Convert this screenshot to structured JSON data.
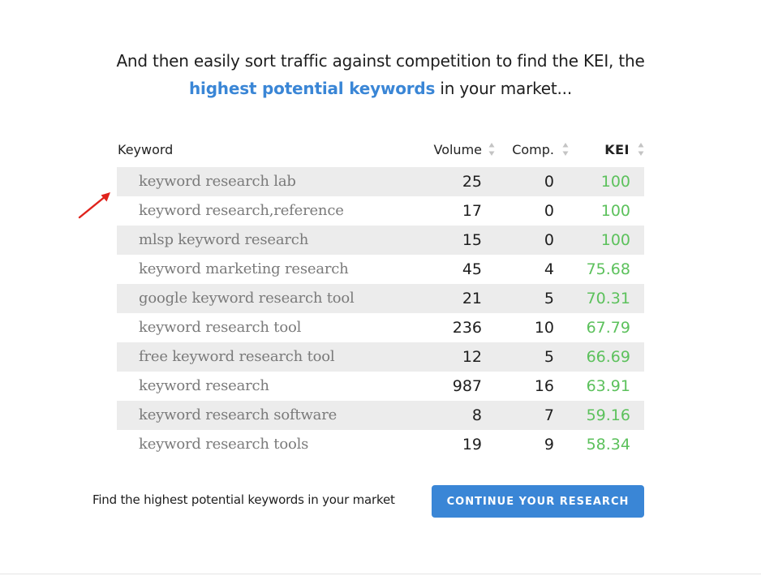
{
  "headline": {
    "line1": "And then easily sort traffic against competition to find the KEI, the",
    "highlight": "highest potential keywords",
    "line2_rest": " in your market..."
  },
  "table": {
    "columns": {
      "keyword": "Keyword",
      "volume": "Volume",
      "comp": "Comp.",
      "kei": "KEI"
    },
    "rows": [
      {
        "keyword": "keyword research lab",
        "volume": "25",
        "comp": "0",
        "kei": "100"
      },
      {
        "keyword": "keyword research,reference",
        "volume": "17",
        "comp": "0",
        "kei": "100"
      },
      {
        "keyword": "mlsp keyword research",
        "volume": "15",
        "comp": "0",
        "kei": "100"
      },
      {
        "keyword": "keyword marketing research",
        "volume": "45",
        "comp": "4",
        "kei": "75.68"
      },
      {
        "keyword": "google keyword research tool",
        "volume": "21",
        "comp": "5",
        "kei": "70.31"
      },
      {
        "keyword": "keyword research tool",
        "volume": "236",
        "comp": "10",
        "kei": "67.79"
      },
      {
        "keyword": "free keyword research tool",
        "volume": "12",
        "comp": "5",
        "kei": "66.69"
      },
      {
        "keyword": "keyword research",
        "volume": "987",
        "comp": "16",
        "kei": "63.91"
      },
      {
        "keyword": "keyword research software",
        "volume": "8",
        "comp": "7",
        "kei": "59.16"
      },
      {
        "keyword": "keyword research tools",
        "volume": "19",
        "comp": "9",
        "kei": "58.34"
      }
    ]
  },
  "footer": {
    "text": "Find the highest potential keywords in your market",
    "button_label": "CONTINUE YOUR RESEARCH"
  },
  "icons": {
    "sort": "sort-arrows-icon",
    "annotation": "red-arrow-icon"
  },
  "colors": {
    "accent": "#3a86d6",
    "kei_green": "#5cc15c",
    "row_shade": "#ececec",
    "arrow_red": "#e0231c"
  }
}
